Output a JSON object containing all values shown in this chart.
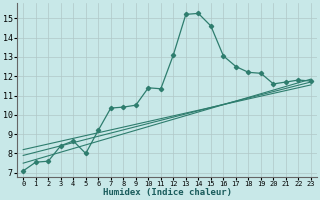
{
  "xlabel": "Humidex (Indice chaleur)",
  "background_color": "#c8e8e8",
  "grid_color": "#b0c8c8",
  "line_color": "#2e7d6e",
  "xlim": [
    -0.5,
    23.5
  ],
  "ylim": [
    6.8,
    15.8
  ],
  "yticks": [
    7,
    8,
    9,
    10,
    11,
    12,
    13,
    14,
    15
  ],
  "xticks": [
    0,
    1,
    2,
    3,
    4,
    5,
    6,
    7,
    8,
    9,
    10,
    11,
    12,
    13,
    14,
    15,
    16,
    17,
    18,
    19,
    20,
    21,
    22,
    23
  ],
  "main_series": {
    "x": [
      0,
      1,
      2,
      3,
      4,
      5,
      6,
      7,
      8,
      9,
      10,
      11,
      12,
      13,
      14,
      15,
      16,
      17,
      18,
      19,
      20,
      21,
      22,
      23
    ],
    "y": [
      7.1,
      7.55,
      7.6,
      8.4,
      8.65,
      8.0,
      9.2,
      10.35,
      10.4,
      10.5,
      11.4,
      11.35,
      13.1,
      15.2,
      15.25,
      14.6,
      13.05,
      12.5,
      12.2,
      12.15,
      11.6,
      11.7,
      11.8,
      11.75
    ]
  },
  "straight_lines": [
    {
      "x": [
        0,
        23
      ],
      "y": [
        7.5,
        11.85
      ]
    },
    {
      "x": [
        0,
        23
      ],
      "y": [
        7.9,
        11.7
      ]
    },
    {
      "x": [
        0,
        23
      ],
      "y": [
        8.2,
        11.55
      ]
    }
  ]
}
